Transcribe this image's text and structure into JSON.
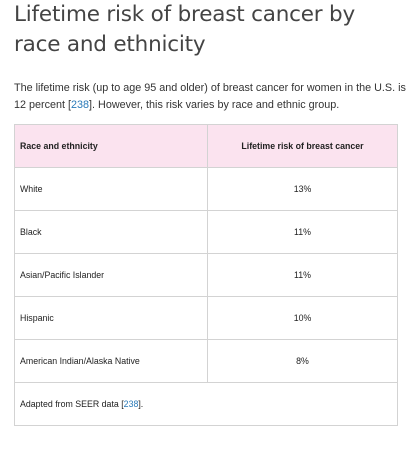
{
  "page": {
    "title": "Lifetime risk of breast cancer by race and ethnicity",
    "intro": {
      "before_ref": "The lifetime risk (up to age 95 and older) of breast cancer for women in the U.S. is 12 percent [",
      "ref": "238",
      "after_ref": "]. However, this risk varies by race and ethnic group."
    }
  },
  "table": {
    "headers": {
      "race": "Race and ethnicity",
      "risk": "Lifetime risk of breast cancer"
    },
    "rows": [
      {
        "race": "White",
        "risk": "13%"
      },
      {
        "race": "Black",
        "risk": "11%"
      },
      {
        "race": "Asian/Pacific Islander",
        "risk": "11%"
      },
      {
        "race": "Hispanic",
        "risk": "10%"
      },
      {
        "race": "American Indian/Alaska Native",
        "risk": "8%"
      }
    ],
    "footer": {
      "before_ref": "Adapted from SEER data [",
      "ref": "238",
      "after_ref": "]."
    }
  },
  "colors": {
    "header_bg": "#fbe3ef",
    "link": "#2a7ab8",
    "border": "#d3d3d3"
  }
}
